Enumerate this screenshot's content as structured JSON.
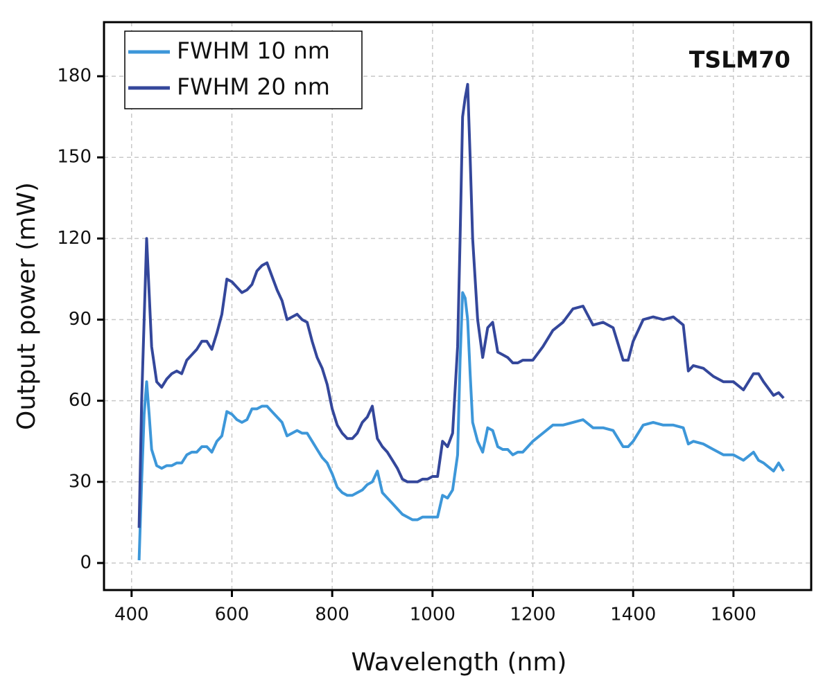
{
  "chart_data": {
    "type": "line",
    "xlabel": "Wavelength (nm)",
    "ylabel": "Output power (mW)",
    "annotation": "TSLM70",
    "legend": "upper left",
    "grid": true,
    "xlim": [
      345,
      1755
    ],
    "ylim": [
      -10,
      200
    ],
    "xticks": [
      400,
      600,
      800,
      1000,
      1200,
      1400,
      1600
    ],
    "yticks": [
      0,
      30,
      60,
      90,
      120,
      150,
      180
    ],
    "x": [
      415,
      420,
      425,
      430,
      435,
      440,
      450,
      460,
      470,
      480,
      490,
      500,
      510,
      520,
      530,
      540,
      550,
      560,
      570,
      580,
      590,
      600,
      610,
      620,
      630,
      640,
      650,
      660,
      670,
      680,
      690,
      700,
      710,
      720,
      730,
      740,
      750,
      760,
      770,
      780,
      790,
      800,
      810,
      820,
      830,
      840,
      850,
      860,
      870,
      880,
      890,
      900,
      910,
      920,
      930,
      940,
      950,
      960,
      970,
      980,
      990,
      1000,
      1010,
      1020,
      1030,
      1040,
      1050,
      1055,
      1060,
      1065,
      1070,
      1075,
      1080,
      1090,
      1100,
      1110,
      1120,
      1130,
      1140,
      1150,
      1160,
      1170,
      1180,
      1190,
      1200,
      1220,
      1240,
      1260,
      1280,
      1300,
      1320,
      1340,
      1360,
      1380,
      1390,
      1400,
      1420,
      1440,
      1460,
      1480,
      1500,
      1510,
      1520,
      1540,
      1560,
      1580,
      1600,
      1620,
      1640,
      1650,
      1660,
      1680,
      1690,
      1700
    ],
    "series": [
      {
        "name": "FWHM 10 nm",
        "color": "#3d97d9",
        "values": [
          1,
          30,
          55,
          67,
          55,
          42,
          36,
          35,
          36,
          36,
          37,
          37,
          40,
          41,
          41,
          43,
          43,
          41,
          45,
          47,
          56,
          55,
          53,
          52,
          53,
          57,
          57,
          58,
          58,
          56,
          54,
          52,
          47,
          48,
          49,
          48,
          48,
          45,
          42,
          39,
          37,
          33,
          28,
          26,
          25,
          25,
          26,
          27,
          29,
          30,
          34,
          26,
          24,
          22,
          20,
          18,
          17,
          16,
          16,
          17,
          17,
          17,
          17,
          25,
          24,
          27,
          40,
          75,
          100,
          98,
          90,
          70,
          52,
          45,
          41,
          50,
          49,
          43,
          42,
          42,
          40,
          41,
          41,
          43,
          45,
          48,
          51,
          51,
          52,
          53,
          50,
          50,
          49,
          43,
          43,
          45,
          51,
          52,
          51,
          51,
          50,
          44,
          45,
          44,
          42,
          40,
          40,
          38,
          41,
          38,
          37,
          34,
          37,
          34
        ]
      },
      {
        "name": "FWHM 20 nm",
        "color": "#34479b",
        "values": [
          13,
          60,
          90,
          120,
          100,
          80,
          67,
          65,
          68,
          70,
          71,
          70,
          75,
          77,
          79,
          82,
          82,
          79,
          85,
          92,
          105,
          104,
          102,
          100,
          101,
          103,
          108,
          110,
          111,
          106,
          101,
          97,
          90,
          91,
          92,
          90,
          89,
          82,
          76,
          72,
          66,
          57,
          51,
          48,
          46,
          46,
          48,
          52,
          54,
          58,
          46,
          43,
          41,
          38,
          35,
          31,
          30,
          30,
          30,
          31,
          31,
          32,
          32,
          45,
          43,
          48,
          80,
          120,
          165,
          172,
          177,
          150,
          120,
          90,
          76,
          87,
          89,
          78,
          77,
          76,
          74,
          74,
          75,
          75,
          75,
          80,
          86,
          89,
          94,
          95,
          88,
          89,
          87,
          75,
          75,
          82,
          90,
          91,
          90,
          91,
          88,
          71,
          73,
          72,
          69,
          67,
          67,
          64,
          70,
          70,
          67,
          62,
          63,
          61
        ]
      }
    ]
  }
}
